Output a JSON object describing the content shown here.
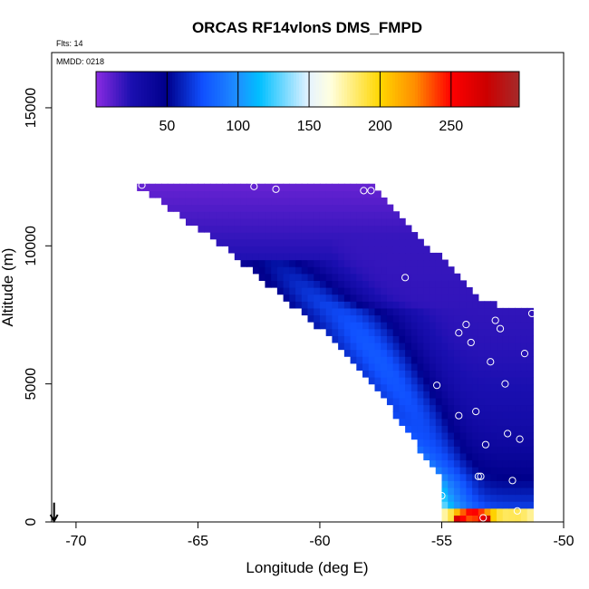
{
  "chart_data": {
    "type": "heatmap",
    "title": "ORCAS RF14vlonS DMS_FMPD",
    "annotations": {
      "flights": "Flts: 14",
      "date": "MMDD: 0218"
    },
    "xlabel": "Longitude (deg E)",
    "ylabel": "Altitude (m)",
    "xlim": [
      -71,
      -50
    ],
    "ylim": [
      0,
      17000
    ],
    "xticks": [
      -70,
      -65,
      -60,
      -55,
      -50
    ],
    "xtick_labels": [
      "-70",
      "-65",
      "-60",
      "-55",
      "-50"
    ],
    "yticks": [
      0,
      5000,
      10000,
      15000
    ],
    "ytick_labels": [
      "0",
      "5000",
      "10000",
      "15000"
    ],
    "colorbar": {
      "min": 0,
      "max": 298,
      "ticks": [
        50,
        100,
        150,
        200,
        250
      ],
      "tick_labels": [
        "50",
        "100",
        "150",
        "200",
        "250"
      ],
      "stops": [
        {
          "v": 0,
          "c": "#8a2be2"
        },
        {
          "v": 25,
          "c": "#1a0fb0"
        },
        {
          "v": 50,
          "c": "#00008b"
        },
        {
          "v": 75,
          "c": "#1050ff"
        },
        {
          "v": 100,
          "c": "#1e90ff"
        },
        {
          "v": 115,
          "c": "#00bfff"
        },
        {
          "v": 150,
          "c": "#e6f3ff"
        },
        {
          "v": 165,
          "c": "#ffffe0"
        },
        {
          "v": 200,
          "c": "#ffd700"
        },
        {
          "v": 225,
          "c": "#ff8c00"
        },
        {
          "v": 250,
          "c": "#ff0000"
        },
        {
          "v": 275,
          "c": "#cc0000"
        },
        {
          "v": 298,
          "c": "#a52a2a"
        }
      ]
    },
    "field_domain": {
      "top_altitude": 12200,
      "left_edge": [
        [
          -67.5,
          12200
        ],
        [
          -64,
          10000
        ],
        [
          -60,
          7000
        ],
        [
          -57,
          4000
        ],
        [
          -55,
          1500
        ],
        [
          -55,
          0
        ]
      ],
      "right_edge": [
        [
          -58,
          12200
        ],
        [
          -53.5,
          8000
        ],
        [
          -51.3,
          7600
        ],
        [
          -51.3,
          0
        ]
      ]
    },
    "observations": [
      {
        "lon": -67.3,
        "alt": 12200
      },
      {
        "lon": -62.7,
        "alt": 12150
      },
      {
        "lon": -61.8,
        "alt": 12050
      },
      {
        "lon": -58.2,
        "alt": 12000
      },
      {
        "lon": -57.9,
        "alt": 12000
      },
      {
        "lon": -56.5,
        "alt": 8850
      },
      {
        "lon": -54.0,
        "alt": 7150
      },
      {
        "lon": -54.3,
        "alt": 6850
      },
      {
        "lon": -53.8,
        "alt": 6500
      },
      {
        "lon": -52.8,
        "alt": 7300
      },
      {
        "lon": -52.6,
        "alt": 7000
      },
      {
        "lon": -51.3,
        "alt": 7550
      },
      {
        "lon": -51.6,
        "alt": 6100
      },
      {
        "lon": -53.0,
        "alt": 5800
      },
      {
        "lon": -52.4,
        "alt": 5000
      },
      {
        "lon": -55.2,
        "alt": 4950
      },
      {
        "lon": -54.3,
        "alt": 3850
      },
      {
        "lon": -53.6,
        "alt": 4000
      },
      {
        "lon": -52.3,
        "alt": 3200
      },
      {
        "lon": -51.8,
        "alt": 3000
      },
      {
        "lon": -53.2,
        "alt": 2800
      },
      {
        "lon": -53.5,
        "alt": 1650
      },
      {
        "lon": -53.4,
        "alt": 1650
      },
      {
        "lon": -52.1,
        "alt": 1500
      },
      {
        "lon": -55.0,
        "alt": 950
      },
      {
        "lon": -51.9,
        "alt": 400
      },
      {
        "lon": -53.3,
        "alt": 150
      }
    ],
    "location_marker": {
      "lon": -70.9,
      "alt": 700,
      "symbol": "down-arrow"
    }
  }
}
